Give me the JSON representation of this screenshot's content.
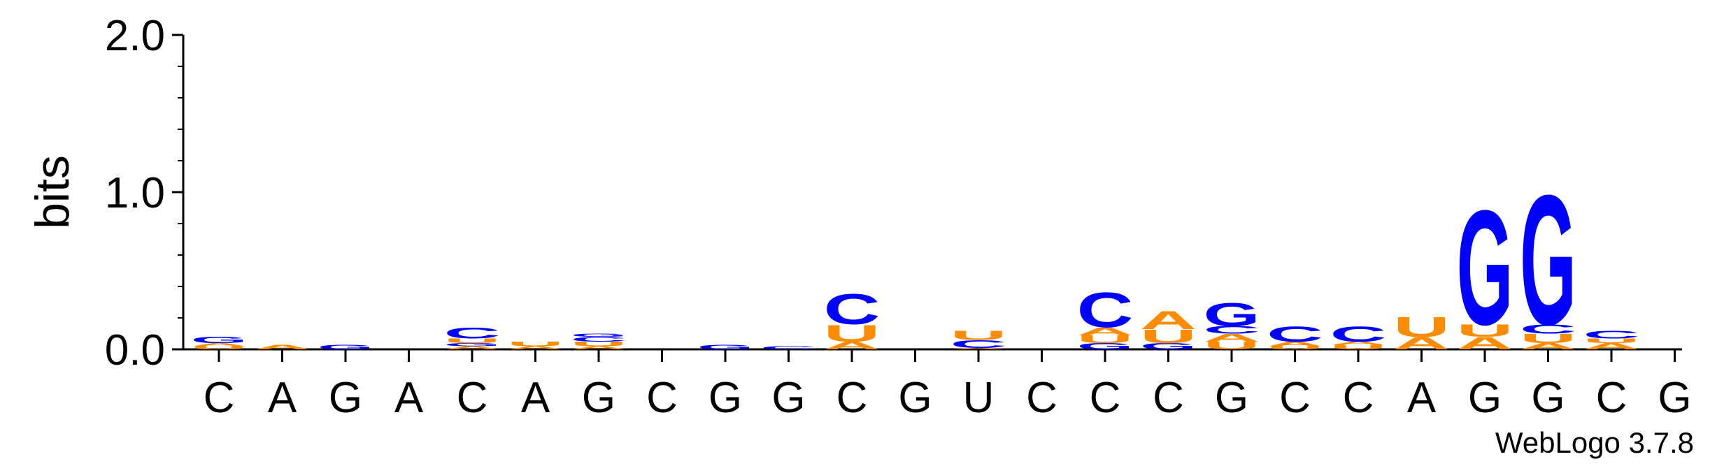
{
  "chart_data": {
    "type": "sequence-logo",
    "ylabel": "bits",
    "ylim": [
      0,
      2
    ],
    "y_ticks": [
      "0.0",
      "1.0",
      "2.0"
    ],
    "colors": {
      "A": "#ff8c00",
      "U": "#ff8c00",
      "C": "#0000ff",
      "G": "#0000ff"
    },
    "x_labels": [
      "C",
      "A",
      "G",
      "A",
      "C",
      "A",
      "G",
      "C",
      "G",
      "G",
      "C",
      "G",
      "U",
      "C",
      "C",
      "C",
      "G",
      "C",
      "C",
      "A",
      "G",
      "G",
      "C",
      "G"
    ],
    "positions": [
      [
        [
          "U",
          0.02
        ],
        [
          "A",
          0.02
        ],
        [
          "G",
          0.04
        ]
      ],
      [
        [
          "A",
          0.03
        ]
      ],
      [
        [
          "G",
          0.03
        ]
      ],
      [],
      [
        [
          "A",
          0.02
        ],
        [
          "G",
          0.02
        ],
        [
          "U",
          0.03
        ],
        [
          "C",
          0.07
        ]
      ],
      [
        [
          "A",
          0.02
        ],
        [
          "U",
          0.03
        ]
      ],
      [
        [
          "A",
          0.02
        ],
        [
          "U",
          0.03
        ],
        [
          "C",
          0.03
        ],
        [
          "G",
          0.02
        ]
      ],
      [],
      [
        [
          "G",
          0.03
        ]
      ],
      [
        [
          "C",
          0.02
        ]
      ],
      [
        [
          "A",
          0.05
        ],
        [
          "U",
          0.11
        ],
        [
          "C",
          0.2
        ]
      ],
      [],
      [
        [
          "A",
          0.01
        ],
        [
          "C",
          0.05
        ],
        [
          "U",
          0.06
        ]
      ],
      [],
      [
        [
          "G",
          0.04
        ],
        [
          "U",
          0.05
        ],
        [
          "A",
          0.05
        ],
        [
          "C",
          0.23
        ]
      ],
      [
        [
          "G",
          0.04
        ],
        [
          "U",
          0.09
        ],
        [
          "A",
          0.12
        ]
      ],
      [
        [
          "U",
          0.05
        ],
        [
          "A",
          0.05
        ],
        [
          "C",
          0.05
        ],
        [
          "G",
          0.15
        ]
      ],
      [
        [
          "U",
          0.02
        ],
        [
          "A",
          0.03
        ],
        [
          "C",
          0.1
        ]
      ],
      [
        [
          "U",
          0.03
        ],
        [
          "A",
          0.02
        ],
        [
          "C",
          0.1
        ]
      ],
      [
        [
          "A",
          0.08
        ],
        [
          "U",
          0.13
        ]
      ],
      [
        [
          "A",
          0.08
        ],
        [
          "U",
          0.08
        ],
        [
          "G",
          0.75
        ]
      ],
      [
        [
          "A",
          0.04
        ],
        [
          "U",
          0.06
        ],
        [
          "C",
          0.06
        ],
        [
          "G",
          0.85
        ]
      ],
      [
        [
          "A",
          0.04
        ],
        [
          "U",
          0.03
        ],
        [
          "C",
          0.05
        ]
      ],
      []
    ],
    "watermark": "WebLogo 3.7.8"
  }
}
